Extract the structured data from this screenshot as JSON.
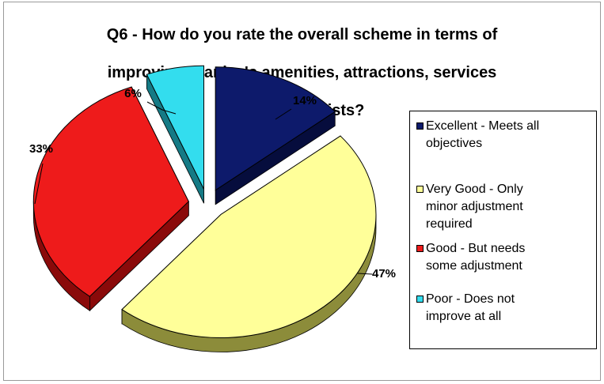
{
  "colors": {
    "excellent": "#0d1a6b",
    "excellent_side": "#060d3d",
    "very_good": "#ffff99",
    "very_good_side": "#8c8c3a",
    "good": "#ee1b1b",
    "good_side": "#8a0a0a",
    "poor": "#33ddee",
    "poor_side": "#157a85"
  },
  "chart_data": {
    "type": "pie",
    "title": "Q6 - How do you rate the overall scheme in terms of improving Stanley's amenities, attractions, services etc. for tourists?",
    "title_lines": [
      "Q6 - How do you rate the overall scheme in terms of",
      "improving Stanley's amenities, attractions, services",
      "etc. for tourists?"
    ],
    "legend_position": "right",
    "exploded": true,
    "three_d": true,
    "slices": [
      {
        "label": "Excellent - Meets all objectives",
        "legend_lines": [
          "Excellent - Meets all",
          "objectives"
        ],
        "value": 14,
        "value_label": "14%",
        "color_key": "excellent"
      },
      {
        "label": "Very Good - Only minor adjustment required",
        "legend_lines": [
          "Very Good - Only",
          "minor adjustment",
          "required"
        ],
        "value": 47,
        "value_label": "47%",
        "color_key": "very_good"
      },
      {
        "label": "Good - But needs some adjustment",
        "legend_lines": [
          "Good - But needs",
          "some adjustment"
        ],
        "value": 33,
        "value_label": "33%",
        "color_key": "good"
      },
      {
        "label": "Poor - Does not improve at all",
        "legend_lines": [
          "Poor - Does not",
          "improve at all"
        ],
        "value": 6,
        "value_label": "6%",
        "color_key": "poor"
      }
    ]
  }
}
